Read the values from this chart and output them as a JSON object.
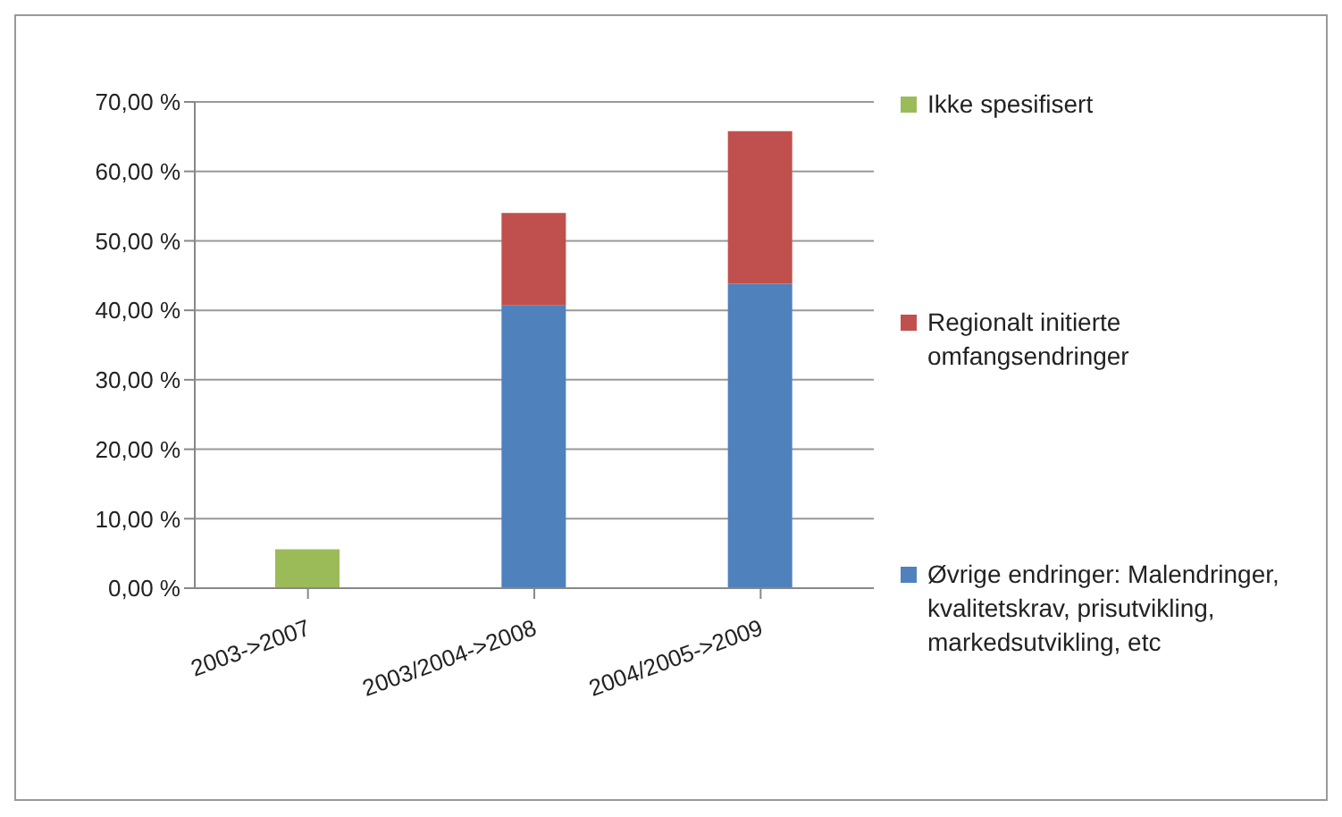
{
  "chart_data": {
    "type": "bar",
    "stacked": true,
    "categories": [
      "2003->2007",
      "2003/2004->2008",
      "2004/2005->2009"
    ],
    "series": [
      {
        "name": "Øvrige endringer: Malendringer, kvalitetskrav, prisutvikling, markedsutvikling, etc",
        "color": "#4f81bd",
        "values": [
          null,
          40.7,
          43.8
        ]
      },
      {
        "name": "Regionalt initierte omfangsendringer",
        "color": "#c0504d",
        "values": [
          null,
          13.3,
          22.0
        ]
      },
      {
        "name": "Ikke spesifisert",
        "color": "#9bbb59",
        "values": [
          5.6,
          null,
          null
        ]
      }
    ],
    "ylim": [
      0,
      70
    ],
    "yticks": [
      {
        "value": 0,
        "label": "0,00 %"
      },
      {
        "value": 10,
        "label": "10,00 %"
      },
      {
        "value": 20,
        "label": "20,00 %"
      },
      {
        "value": 30,
        "label": "30,00 %"
      },
      {
        "value": 40,
        "label": "40,00 %"
      },
      {
        "value": 50,
        "label": "50,00 %"
      },
      {
        "value": 60,
        "label": "60,00 %"
      },
      {
        "value": 70,
        "label": "70,00 %"
      }
    ],
    "grid": "y",
    "legend": "right"
  }
}
